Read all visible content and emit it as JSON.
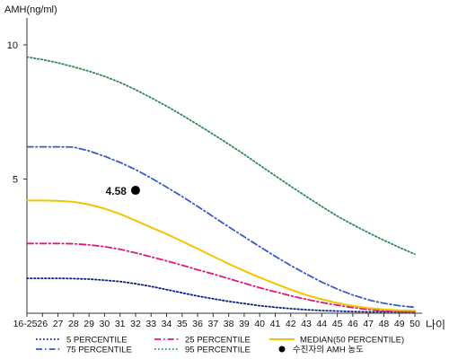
{
  "chart_data": {
    "type": "line",
    "title": "",
    "ylabel": "AMH(ng/ml)",
    "xlabel": "나이",
    "ylim": [
      0,
      11
    ],
    "y_ticks": [
      5,
      10
    ],
    "grid": false,
    "legend_position": "bottom",
    "categories": [
      "16-25",
      "26",
      "27",
      "28",
      "29",
      "30",
      "31",
      "32",
      "33",
      "34",
      "35",
      "36",
      "37",
      "38",
      "39",
      "40",
      "41",
      "42",
      "43",
      "44",
      "45",
      "46",
      "47",
      "48",
      "49",
      "50"
    ],
    "series": [
      {
        "name": "5 PERCENTILE",
        "style": "dotted",
        "color": "#0a1f8f",
        "values": [
          1.3,
          1.3,
          1.3,
          1.29,
          1.27,
          1.23,
          1.18,
          1.1,
          1.0,
          0.88,
          0.76,
          0.64,
          0.54,
          0.44,
          0.36,
          0.28,
          0.22,
          0.17,
          0.13,
          0.1,
          0.08,
          0.06,
          0.05,
          0.05,
          0.05,
          0.05
        ]
      },
      {
        "name": "25 PERCENTILE",
        "style": "dashdot",
        "color": "#e0177d",
        "values": [
          2.6,
          2.6,
          2.6,
          2.59,
          2.55,
          2.48,
          2.38,
          2.25,
          2.1,
          1.95,
          1.79,
          1.62,
          1.46,
          1.29,
          1.12,
          0.95,
          0.8,
          0.65,
          0.52,
          0.4,
          0.3,
          0.21,
          0.14,
          0.09,
          0.06,
          0.05
        ]
      },
      {
        "name": "75 PERCENTILE",
        "style": "dashdot",
        "color": "#3a5bc8",
        "values": [
          6.2,
          6.2,
          6.2,
          6.19,
          6.05,
          5.85,
          5.62,
          5.35,
          5.04,
          4.7,
          4.35,
          3.98,
          3.6,
          3.22,
          2.85,
          2.48,
          2.12,
          1.78,
          1.46,
          1.16,
          0.9,
          0.68,
          0.5,
          0.37,
          0.28,
          0.22
        ]
      },
      {
        "name": "MEDIAN(50 PERCENTILE)",
        "style": "solid",
        "color": "#f3c400",
        "values": [
          4.2,
          4.2,
          4.19,
          4.15,
          4.05,
          3.9,
          3.7,
          3.45,
          3.2,
          2.95,
          2.68,
          2.4,
          2.12,
          1.84,
          1.58,
          1.33,
          1.1,
          0.88,
          0.68,
          0.52,
          0.38,
          0.27,
          0.19,
          0.14,
          0.11,
          0.1
        ]
      },
      {
        "name": "95 PERCENTILE",
        "style": "dotted",
        "color": "#2e8b57",
        "values": [
          9.55,
          9.45,
          9.33,
          9.18,
          9.02,
          8.83,
          8.6,
          8.33,
          8.03,
          7.72,
          7.38,
          7.03,
          6.67,
          6.3,
          5.92,
          5.52,
          5.12,
          4.73,
          4.35,
          3.98,
          3.62,
          3.3,
          3.0,
          2.72,
          2.45,
          2.2
        ]
      }
    ],
    "marker": {
      "legend_label": "수진자의 AMH 농도",
      "x": "32",
      "y": 4.58,
      "label": "4.58",
      "color": "#000000"
    }
  }
}
